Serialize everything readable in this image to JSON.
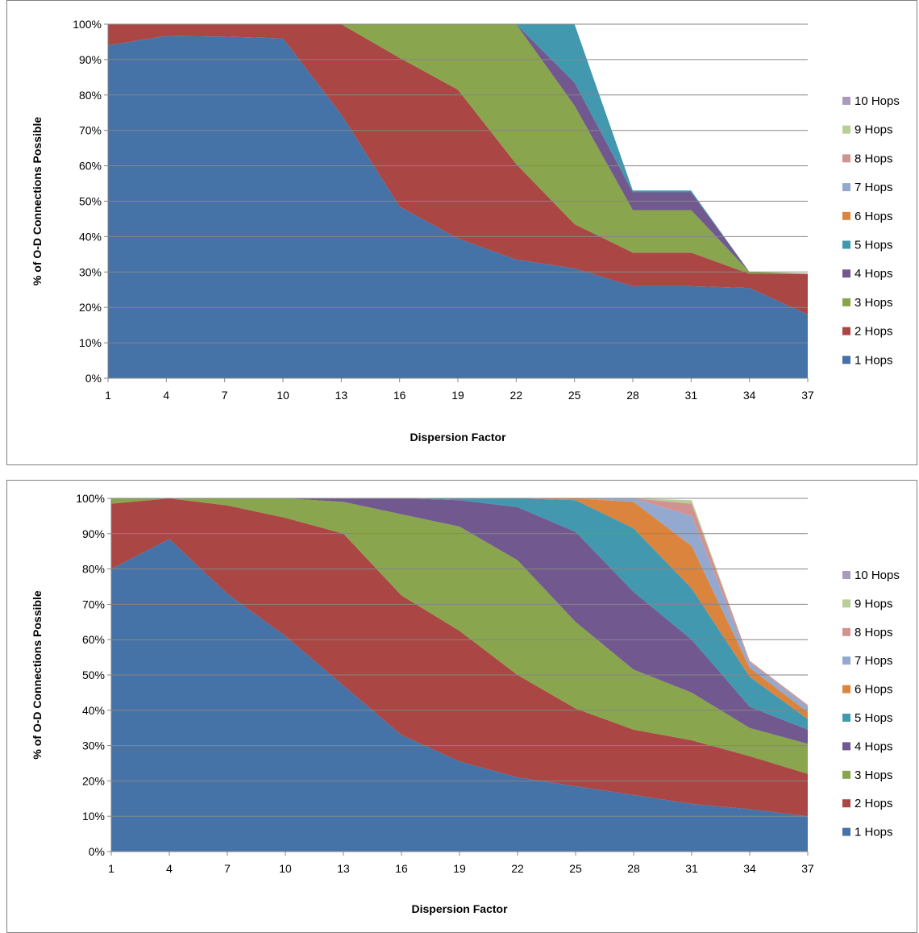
{
  "chart_data": [
    {
      "type": "area",
      "stacked": "percent",
      "title": "",
      "xlabel": "Dispersion Factor",
      "ylabel": "% of O-D Connections Possible",
      "x": [
        1,
        4,
        7,
        10,
        13,
        16,
        19,
        22,
        25,
        28,
        31,
        34,
        37
      ],
      "ylim": [
        0,
        100
      ],
      "yticks": [
        "0%",
        "10%",
        "20%",
        "30%",
        "40%",
        "50%",
        "60%",
        "70%",
        "80%",
        "90%",
        "100%"
      ],
      "grid": true,
      "legend_position": "right",
      "series": [
        {
          "name": "1 Hops",
          "color": "#4572A7",
          "values": [
            94,
            96.7,
            96.5,
            96,
            74.5,
            48.5,
            39.5,
            33.5,
            31,
            26,
            26,
            25.5,
            18
          ]
        },
        {
          "name": "2 Hops",
          "color": "#AA4643",
          "values": [
            6,
            3.3,
            3.5,
            4,
            25.5,
            42,
            42,
            27,
            12.5,
            9.5,
            9.5,
            4,
            11.5
          ]
        },
        {
          "name": "3 Hops",
          "color": "#89A54E",
          "values": [
            0,
            0,
            0,
            0,
            0,
            9.5,
            18.5,
            39.5,
            33.5,
            12,
            12,
            0.5,
            0
          ]
        },
        {
          "name": "4 Hops",
          "color": "#71588F",
          "values": [
            0,
            0,
            0,
            0,
            0,
            0,
            0,
            0,
            6.5,
            5,
            5,
            0,
            0
          ]
        },
        {
          "name": "5 Hops",
          "color": "#4198AF",
          "values": [
            0,
            0,
            0,
            0,
            0,
            0,
            0,
            0,
            16.5,
            0.5,
            0.5,
            0,
            0
          ]
        },
        {
          "name": "6 Hops",
          "color": "#DB843D",
          "values": [
            0,
            0,
            0,
            0,
            0,
            0,
            0,
            0,
            0,
            0,
            0,
            0,
            0
          ]
        },
        {
          "name": "7 Hops",
          "color": "#93A9CF",
          "values": [
            0,
            0,
            0,
            0,
            0,
            0,
            0,
            0,
            0,
            0,
            0,
            0,
            0
          ]
        },
        {
          "name": "8 Hops",
          "color": "#D19392",
          "values": [
            0,
            0,
            0,
            0,
            0,
            0,
            0,
            0,
            0,
            0,
            0,
            0,
            0
          ]
        },
        {
          "name": "9 Hops",
          "color": "#B9CD96",
          "values": [
            0,
            0,
            0,
            0,
            0,
            0,
            0,
            0,
            0,
            0,
            0,
            0,
            0
          ]
        },
        {
          "name": "10 Hops",
          "color": "#A99BBD",
          "values": [
            0,
            0,
            0,
            0,
            0,
            0,
            0,
            0,
            0,
            0,
            0,
            0,
            0
          ]
        }
      ]
    },
    {
      "type": "area",
      "stacked": "percent",
      "title": "",
      "xlabel": "Dispersion Factor",
      "ylabel": "% of O-D Connections Possible",
      "x": [
        1,
        4,
        7,
        10,
        13,
        16,
        19,
        22,
        25,
        28,
        31,
        34,
        37
      ],
      "ylim": [
        0,
        100
      ],
      "yticks": [
        "0%",
        "10%",
        "20%",
        "30%",
        "40%",
        "50%",
        "60%",
        "70%",
        "80%",
        "90%",
        "100%"
      ],
      "grid": true,
      "legend_position": "right",
      "series": [
        {
          "name": "1 Hops",
          "color": "#4572A7",
          "values": [
            80,
            88.5,
            73,
            61,
            47,
            33,
            25.5,
            21,
            18.5,
            16,
            13.5,
            12,
            10
          ]
        },
        {
          "name": "2 Hops",
          "color": "#AA4643",
          "values": [
            18.5,
            11.5,
            25,
            33.5,
            43,
            39.5,
            37,
            29,
            22,
            18.5,
            18,
            15,
            12
          ]
        },
        {
          "name": "3 Hops",
          "color": "#89A54E",
          "values": [
            1.5,
            0,
            2,
            5.5,
            9,
            23,
            29.5,
            32.5,
            24.5,
            17,
            13.5,
            8,
            8.5
          ]
        },
        {
          "name": "4 Hops",
          "color": "#71588F",
          "values": [
            0,
            0,
            0,
            0,
            1,
            4.5,
            7.5,
            15,
            25.5,
            22,
            15,
            6,
            4
          ]
        },
        {
          "name": "5 Hops",
          "color": "#4198AF",
          "values": [
            0,
            0,
            0,
            0,
            0,
            0,
            0.5,
            2.5,
            9,
            18,
            14.5,
            8.5,
            3
          ]
        },
        {
          "name": "6 Hops",
          "color": "#DB843D",
          "values": [
            0,
            0,
            0,
            0,
            0,
            0,
            0,
            0,
            0.5,
            7.5,
            12,
            2.5,
            2
          ]
        },
        {
          "name": "7 Hops",
          "color": "#93A9CF",
          "values": [
            0,
            0,
            0,
            0,
            0,
            0,
            0,
            0,
            0,
            1,
            8.5,
            1.5,
            1.5
          ]
        },
        {
          "name": "8 Hops",
          "color": "#D19392",
          "values": [
            0,
            0,
            0,
            0,
            0,
            0,
            0,
            0,
            0,
            0,
            3.5,
            0.5,
            0.5
          ]
        },
        {
          "name": "9 Hops",
          "color": "#B9CD96",
          "values": [
            0,
            0,
            0,
            0,
            0,
            0,
            0,
            0,
            0,
            0,
            1,
            0,
            0
          ]
        },
        {
          "name": "10 Hops",
          "color": "#A99BBD",
          "values": [
            0,
            0,
            0,
            0,
            0,
            0,
            0,
            0,
            0,
            0,
            0,
            0,
            0
          ]
        }
      ]
    }
  ]
}
